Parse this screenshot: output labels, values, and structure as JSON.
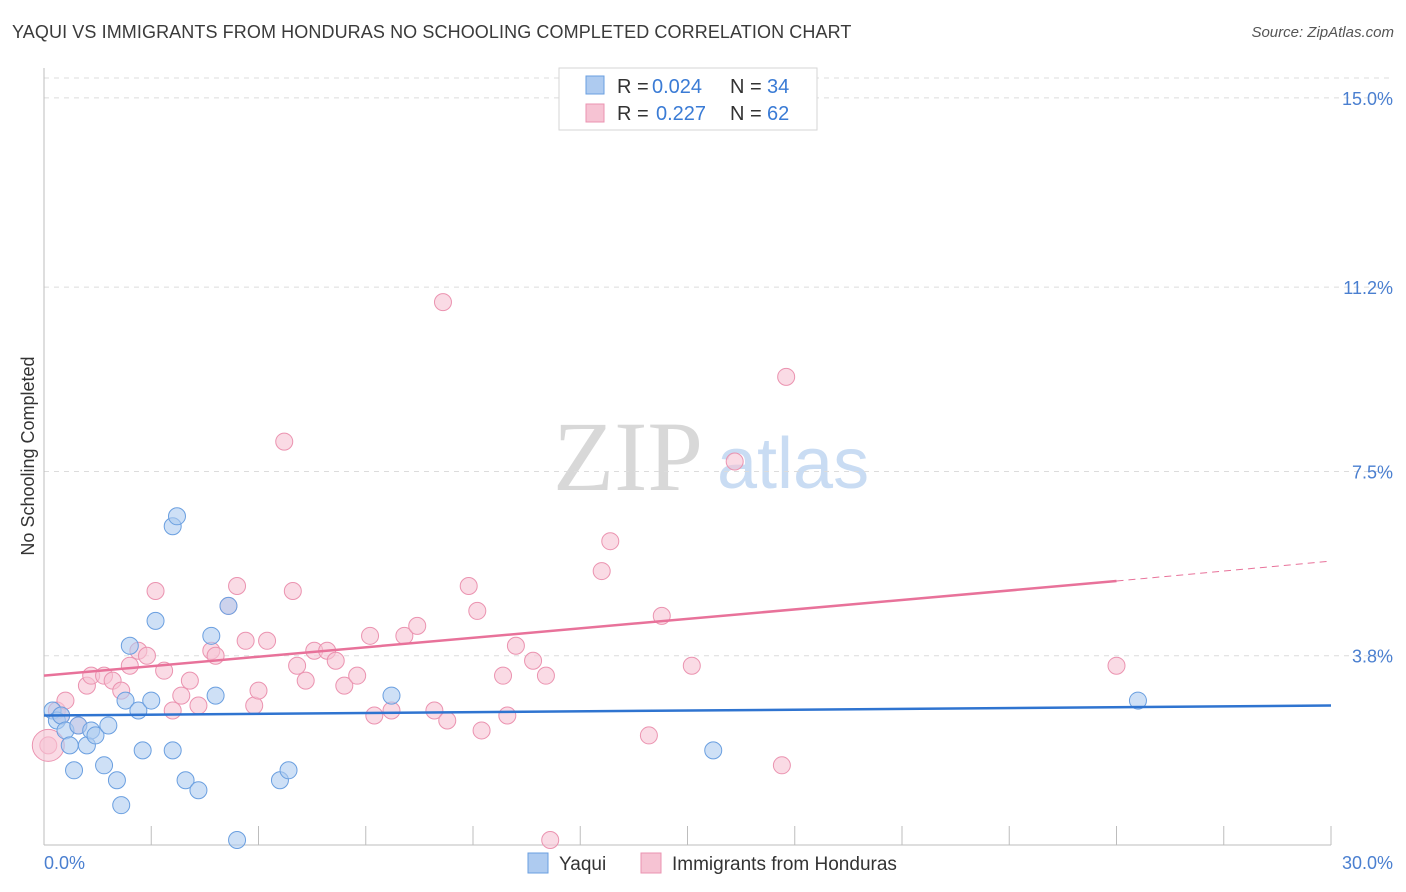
{
  "title": "YAQUI VS IMMIGRANTS FROM HONDURAS NO SCHOOLING COMPLETED CORRELATION CHART",
  "source": "Source: ZipAtlas.com",
  "watermark": {
    "zip": "ZIP",
    "atlas": "atlas"
  },
  "colors": {
    "blue_fill": "#aecbf0",
    "blue_stroke": "#6a9fe0",
    "blue_line": "#2f74d0",
    "pink_fill": "#f6c3d3",
    "pink_stroke": "#eb93b0",
    "pink_line": "#e8729a",
    "grid": "#dcdcdc",
    "tick_text": "#4a7fd0"
  },
  "legend": {
    "rows": [
      {
        "r_label": "R =",
        "r_value": "0.024",
        "n_label": "N =",
        "n_value": "34"
      },
      {
        "r_label": "R =",
        "r_value": "0.227",
        "n_label": "N =",
        "n_value": "62"
      }
    ]
  },
  "chart_data": {
    "type": "scatter",
    "title": "YAQUI VS IMMIGRANTS FROM HONDURAS NO SCHOOLING COMPLETED CORRELATION CHART",
    "xlabel": "",
    "ylabel": "No Schooling Completed",
    "xlim": [
      0,
      30
    ],
    "ylim": [
      0,
      15.4
    ],
    "x_tick_labels": [
      "0.0%",
      "30.0%"
    ],
    "y_ticks": [
      3.8,
      7.5,
      11.2,
      15.0
    ],
    "y_tick_labels": [
      "3.8%",
      "7.5%",
      "11.2%",
      "15.0%"
    ],
    "grid": true,
    "legend_position": "top-center",
    "series": [
      {
        "name": "Yaqui",
        "R": 0.024,
        "N": 34,
        "trend": {
          "x": [
            0,
            30
          ],
          "y": [
            2.6,
            2.8
          ]
        },
        "points": [
          [
            0.2,
            2.7
          ],
          [
            0.3,
            2.5
          ],
          [
            0.4,
            2.6
          ],
          [
            0.5,
            2.3
          ],
          [
            0.6,
            2.0
          ],
          [
            0.7,
            1.5
          ],
          [
            0.8,
            2.4
          ],
          [
            1.0,
            2.0
          ],
          [
            1.1,
            2.3
          ],
          [
            1.2,
            2.2
          ],
          [
            1.4,
            1.6
          ],
          [
            1.5,
            2.4
          ],
          [
            1.7,
            1.3
          ],
          [
            1.8,
            0.8
          ],
          [
            1.9,
            2.9
          ],
          [
            2.0,
            4.0
          ],
          [
            2.2,
            2.7
          ],
          [
            2.3,
            1.9
          ],
          [
            2.5,
            2.9
          ],
          [
            2.6,
            4.5
          ],
          [
            3.0,
            6.4
          ],
          [
            3.0,
            1.9
          ],
          [
            3.1,
            6.6
          ],
          [
            3.3,
            1.3
          ],
          [
            3.6,
            1.1
          ],
          [
            3.9,
            4.2
          ],
          [
            4.0,
            3.0
          ],
          [
            4.3,
            4.8
          ],
          [
            4.5,
            0.1
          ],
          [
            5.5,
            1.3
          ],
          [
            5.7,
            1.5
          ],
          [
            8.1,
            3.0
          ],
          [
            15.6,
            1.9
          ],
          [
            25.5,
            2.9
          ]
        ]
      },
      {
        "name": "Immigrants from Honduras",
        "R": 0.227,
        "N": 62,
        "trend": {
          "x": [
            0,
            25
          ],
          "y": [
            3.4,
            5.3
          ]
        },
        "trend_ext": {
          "x": [
            25,
            30
          ],
          "y": [
            5.3,
            5.7
          ]
        },
        "points": [
          [
            0.1,
            2.0
          ],
          [
            0.3,
            2.7
          ],
          [
            0.4,
            2.6
          ],
          [
            0.5,
            2.9
          ],
          [
            0.8,
            2.4
          ],
          [
            1.0,
            3.2
          ],
          [
            1.1,
            3.4
          ],
          [
            1.4,
            3.4
          ],
          [
            1.6,
            3.3
          ],
          [
            1.8,
            3.1
          ],
          [
            2.0,
            3.6
          ],
          [
            2.2,
            3.9
          ],
          [
            2.4,
            3.8
          ],
          [
            2.6,
            5.1
          ],
          [
            2.8,
            3.5
          ],
          [
            3.0,
            2.7
          ],
          [
            3.2,
            3.0
          ],
          [
            3.4,
            3.3
          ],
          [
            3.6,
            2.8
          ],
          [
            3.9,
            3.9
          ],
          [
            4.0,
            3.8
          ],
          [
            4.3,
            4.8
          ],
          [
            4.5,
            5.2
          ],
          [
            4.7,
            4.1
          ],
          [
            4.9,
            2.8
          ],
          [
            5.0,
            3.1
          ],
          [
            5.2,
            4.1
          ],
          [
            5.6,
            8.1
          ],
          [
            5.8,
            5.1
          ],
          [
            5.9,
            3.6
          ],
          [
            6.1,
            3.3
          ],
          [
            6.3,
            3.9
          ],
          [
            6.6,
            3.9
          ],
          [
            6.8,
            3.7
          ],
          [
            7.0,
            3.2
          ],
          [
            7.3,
            3.4
          ],
          [
            7.6,
            4.2
          ],
          [
            7.7,
            2.6
          ],
          [
            8.1,
            2.7
          ],
          [
            8.4,
            4.2
          ],
          [
            8.7,
            4.4
          ],
          [
            9.1,
            2.7
          ],
          [
            9.4,
            2.5
          ],
          [
            9.3,
            10.9
          ],
          [
            9.9,
            5.2
          ],
          [
            10.1,
            4.7
          ],
          [
            10.2,
            2.3
          ],
          [
            10.7,
            3.4
          ],
          [
            10.8,
            2.6
          ],
          [
            11.0,
            4.0
          ],
          [
            11.4,
            3.7
          ],
          [
            11.7,
            3.4
          ],
          [
            11.8,
            0.1
          ],
          [
            13.0,
            5.5
          ],
          [
            13.2,
            6.1
          ],
          [
            14.1,
            2.2
          ],
          [
            14.4,
            4.6
          ],
          [
            15.1,
            3.6
          ],
          [
            16.1,
            7.7
          ],
          [
            17.2,
            1.6
          ],
          [
            17.3,
            9.4
          ],
          [
            25.0,
            3.6
          ]
        ]
      }
    ]
  }
}
